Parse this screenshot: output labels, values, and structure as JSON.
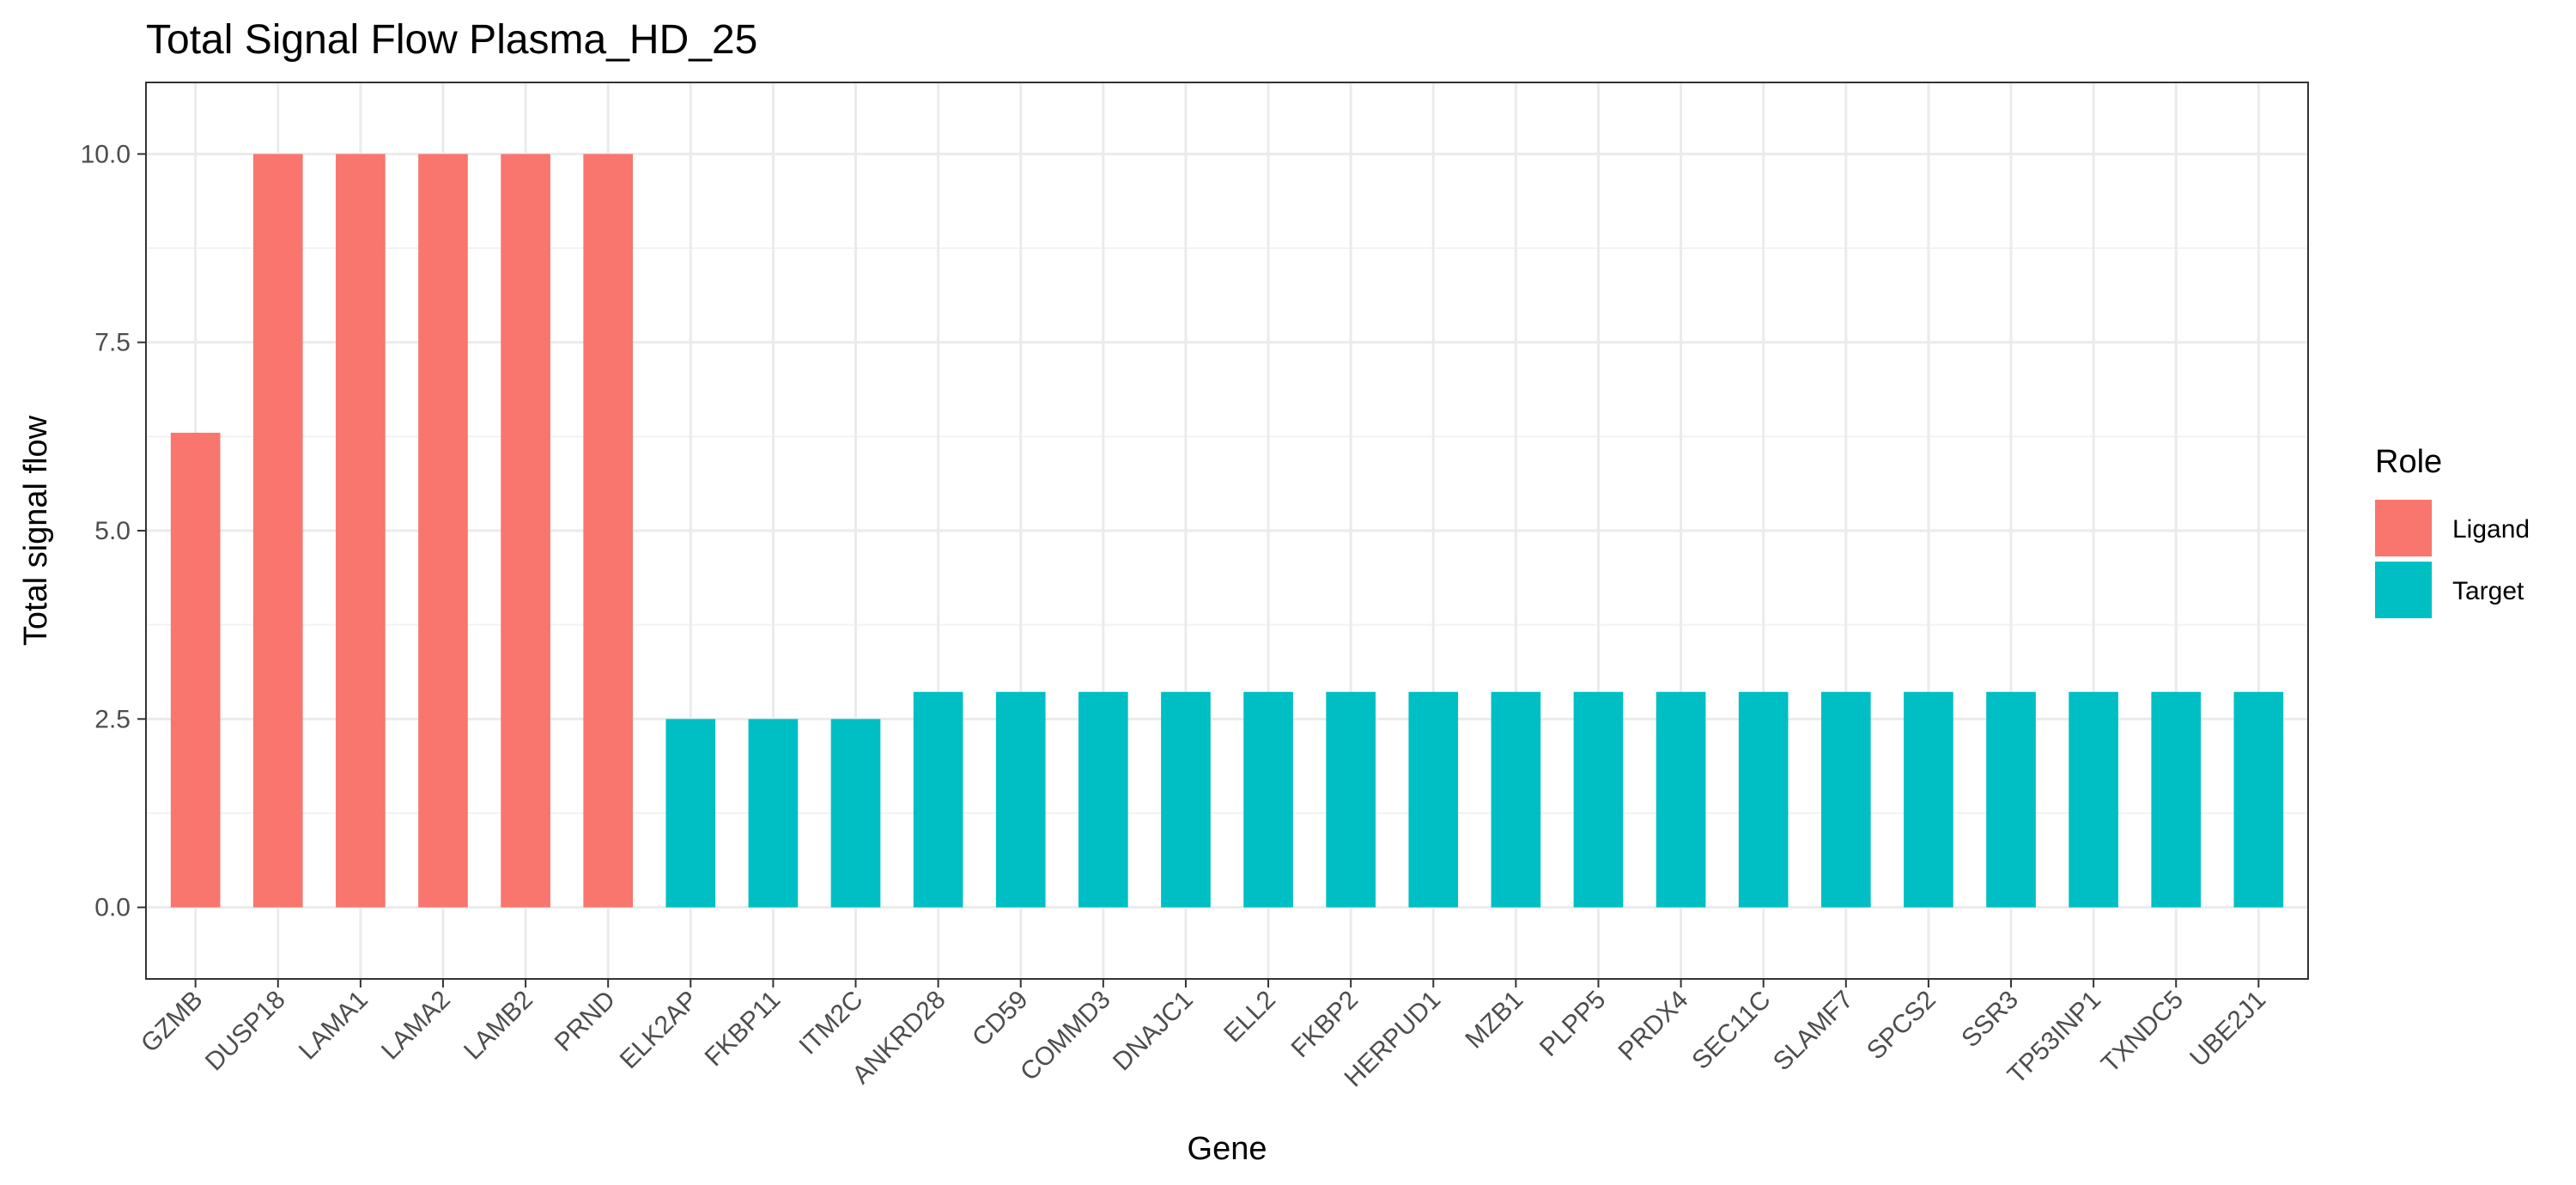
{
  "chart_data": {
    "type": "bar",
    "title": "Total Signal Flow Plasma_HD_25",
    "xlabel": "Gene",
    "ylabel": "Total signal flow",
    "ylim": [
      -0.95,
      10.95
    ],
    "yticks": [
      0.0,
      2.5,
      5.0,
      7.5,
      10.0
    ],
    "ytick_labels": [
      "0.0",
      "2.5",
      "5.0",
      "7.5",
      "10.0"
    ],
    "grid": true,
    "legend_position": "right",
    "legend_title": "Role",
    "categories": [
      "GZMB",
      "DUSP18",
      "LAMA1",
      "LAMA2",
      "LAMB2",
      "PRND",
      "ELK2AP",
      "FKBP11",
      "ITM2C",
      "ANKRD28",
      "CD59",
      "COMMD3",
      "DNAJC1",
      "ELL2",
      "FKBP2",
      "HERPUD1",
      "MZB1",
      "PLPP5",
      "PRDX4",
      "SEC11C",
      "SLAMF7",
      "SPCS2",
      "SSR3",
      "TP53INP1",
      "TXNDC5",
      "UBE2J1"
    ],
    "values": [
      6.3,
      10,
      10,
      10,
      10,
      10,
      2.5,
      2.5,
      2.5,
      2.86,
      2.86,
      2.86,
      2.86,
      2.86,
      2.86,
      2.86,
      2.86,
      2.86,
      2.86,
      2.86,
      2.86,
      2.86,
      2.86,
      2.86,
      2.86,
      2.86
    ],
    "roles": [
      "Ligand",
      "Ligand",
      "Ligand",
      "Ligand",
      "Ligand",
      "Ligand",
      "Target",
      "Target",
      "Target",
      "Target",
      "Target",
      "Target",
      "Target",
      "Target",
      "Target",
      "Target",
      "Target",
      "Target",
      "Target",
      "Target",
      "Target",
      "Target",
      "Target",
      "Target",
      "Target",
      "Target"
    ],
    "series": [
      {
        "name": "Ligand",
        "color": "#F8766D"
      },
      {
        "name": "Target",
        "color": "#00BFC4"
      }
    ]
  }
}
